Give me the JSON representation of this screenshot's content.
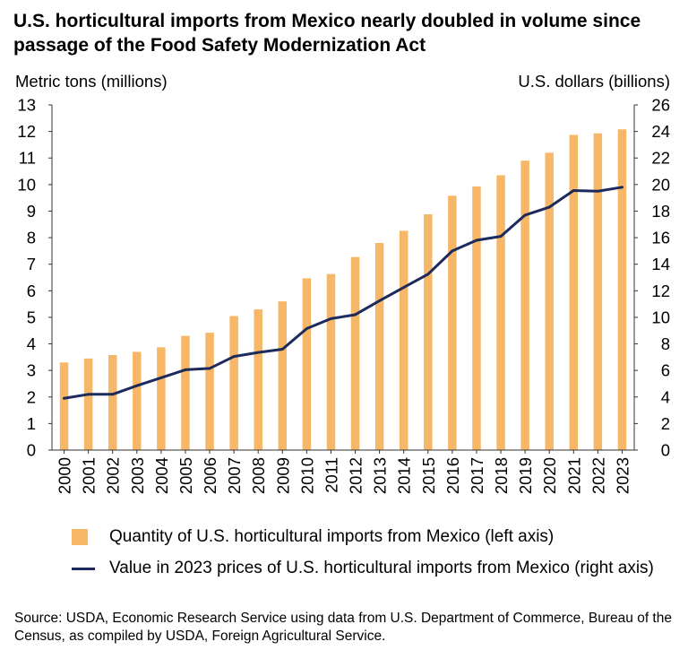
{
  "header": {
    "title": "U.S. horticultural imports from Mexico nearly doubled in volume since passage of the Food Safety Modernization Act",
    "left_axis_title": "Metric tons (millions)",
    "right_axis_title": "U.S. dollars  (billions)"
  },
  "legend": {
    "bar_label": "Quantity of U.S. horticultural imports from Mexico (left axis)",
    "line_label": "Value in 2023 prices of U.S. horticultural imports from Mexico (right axis)"
  },
  "source": "Source: USDA, Economic Research Service using data from U.S. Department of Commerce, Bureau of the Census, as compiled by USDA, Foreign Agricultural Service.",
  "colors": {
    "bar": "#f7b768",
    "line": "#1c2a5c",
    "axis": "#333333"
  },
  "chart_data": {
    "type": "bar",
    "title": "U.S. horticultural imports from Mexico nearly doubled in volume since passage of the Food Safety Modernization Act",
    "xlabel": "",
    "ylabel": "Metric tons (millions)",
    "y2label": "U.S. dollars  (billions)",
    "ylim": [
      0,
      13
    ],
    "y2lim": [
      0,
      26
    ],
    "yticks": [
      0,
      1,
      2,
      3,
      4,
      5,
      6,
      7,
      8,
      9,
      10,
      11,
      12,
      13
    ],
    "y2ticks": [
      0,
      2,
      4,
      6,
      8,
      10,
      12,
      14,
      16,
      18,
      20,
      22,
      24,
      26
    ],
    "categories": [
      "2000",
      "2001",
      "2002",
      "2003",
      "2004",
      "2005",
      "2006",
      "2007",
      "2008",
      "2009",
      "2010",
      "2011",
      "2012",
      "2013",
      "2014",
      "2015",
      "2016",
      "2017",
      "2018",
      "2019",
      "2020",
      "2021",
      "2022",
      "2023"
    ],
    "series": [
      {
        "name": "Quantity of U.S. horticultural imports from Mexico (left axis)",
        "type": "bar",
        "axis": "left",
        "values": [
          3.3,
          3.45,
          3.58,
          3.7,
          3.87,
          4.3,
          4.42,
          5.05,
          5.3,
          5.6,
          6.47,
          6.63,
          7.27,
          7.8,
          8.26,
          8.88,
          9.58,
          9.93,
          10.35,
          10.9,
          11.2,
          11.87,
          11.93,
          12.08
        ]
      },
      {
        "name": "Value in 2023 prices of U.S. horticultural imports from Mexico (right axis)",
        "type": "line",
        "axis": "right",
        "values": [
          3.9,
          4.2,
          4.2,
          4.85,
          5.45,
          6.05,
          6.15,
          7.05,
          7.35,
          7.6,
          9.15,
          9.9,
          10.2,
          11.25,
          12.25,
          13.25,
          15.0,
          15.8,
          16.1,
          17.7,
          18.3,
          19.55,
          19.5,
          19.8
        ]
      }
    ]
  }
}
